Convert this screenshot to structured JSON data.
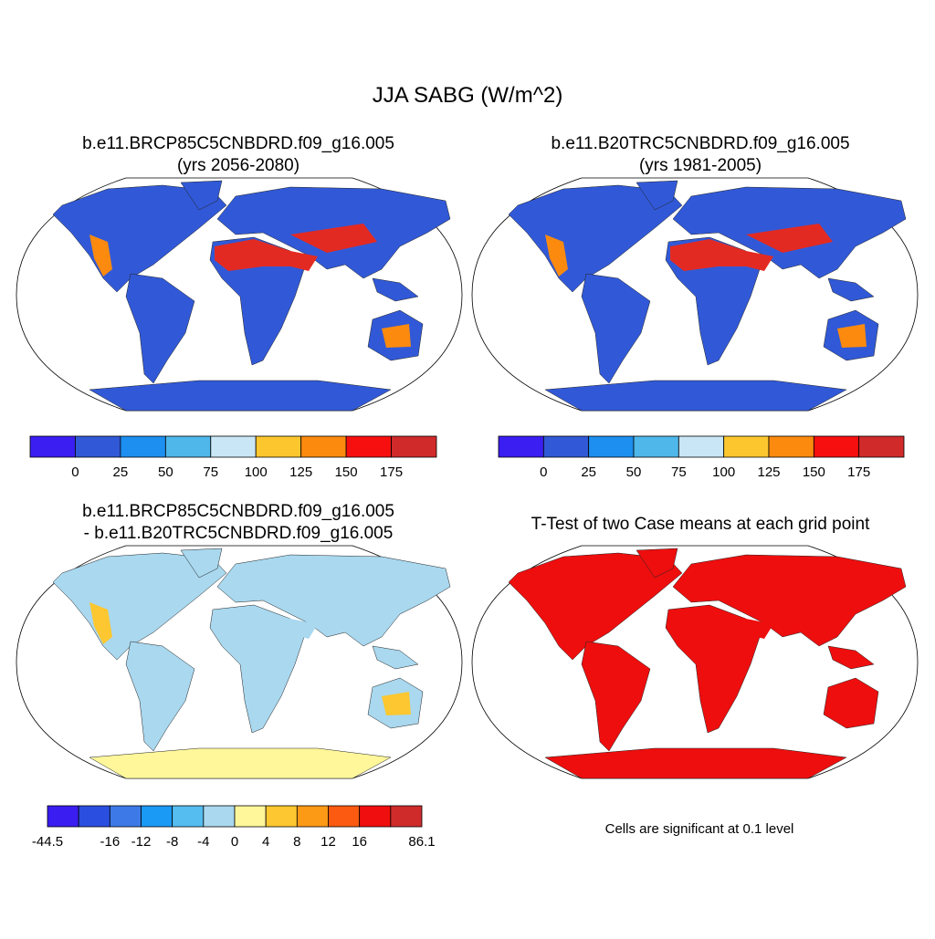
{
  "title": "JJA SABG (W/m^2)",
  "panels": [
    {
      "title": "b.e11.BRCP85C5CNBDRD.f09_g16.005",
      "subtitle": "(yrs 2056-2080)",
      "colorbar": {
        "colors": [
          "#3b1ef2",
          "#3159d7",
          "#1c8ff0",
          "#4fb7ea",
          "#c8e6f5",
          "#fcc72e",
          "#fb8a0e",
          "#f70f0f",
          "#d02a2a"
        ],
        "labels": [
          null,
          0,
          25,
          50,
          75,
          100,
          125,
          150,
          175,
          null
        ]
      }
    },
    {
      "title": "b.e11.B20TRC5CNBDRD.f09_g16.005",
      "subtitle": "(yrs 1981-2005)",
      "colorbar": {
        "colors": [
          "#3b1ef2",
          "#3159d7",
          "#1c8ff0",
          "#4fb7ea",
          "#c8e6f5",
          "#fcc72e",
          "#fb8a0e",
          "#f70f0f",
          "#d02a2a"
        ],
        "labels": [
          null,
          0,
          25,
          50,
          75,
          100,
          125,
          150,
          175,
          null
        ]
      }
    },
    {
      "title": "b.e11.BRCP85C5CNBDRD.f09_g16.005",
      "subtitle": "- b.e11.B20TRC5CNBDRD.f09_g16.005",
      "colorbar": {
        "colors": [
          "#3a1df0",
          "#2a4fe0",
          "#3d7ae8",
          "#1a9af5",
          "#55bdf0",
          "#a9d8ef",
          "#fff79a",
          "#fcc730",
          "#fc9a15",
          "#fb5a10",
          "#f00e0e",
          "#cf2b2b"
        ],
        "labels": [
          -44.5,
          null,
          -16,
          -12,
          -8,
          -4,
          0,
          4,
          8,
          12,
          16,
          null,
          86.1
        ]
      }
    },
    {
      "title": "T-Test of two Case means at each grid point",
      "note": "Cells are significant at 0.1 level"
    }
  ]
}
